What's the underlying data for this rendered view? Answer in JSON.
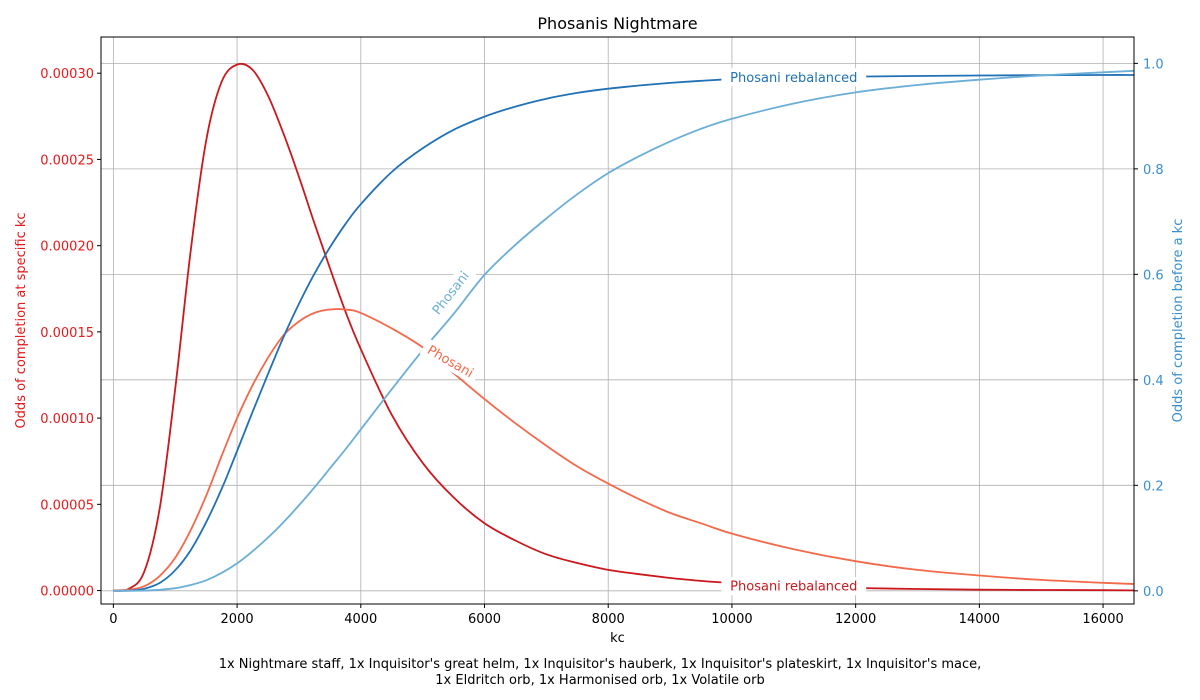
{
  "chart_data": {
    "type": "line",
    "title": "Phosanis Nightmare",
    "xlabel": "kc",
    "ylabel_left": "Odds of completion at specific kc",
    "ylabel_right": "Odds of completion before a kc",
    "xlim": [
      -200,
      16500
    ],
    "ylim_left": [
      -7.8e-06,
      0.000321
    ],
    "ylim_right": [
      -0.025,
      1.05
    ],
    "x_ticks": [
      0,
      2000,
      4000,
      6000,
      8000,
      10000,
      12000,
      14000,
      16000
    ],
    "x_tick_labels": [
      "0",
      "2000",
      "4000",
      "6000",
      "8000",
      "10000",
      "12000",
      "14000",
      "16000"
    ],
    "y_left_ticks": [
      0,
      5e-05,
      0.0001,
      0.00015,
      0.0002,
      0.00025,
      0.0003
    ],
    "y_left_tick_labels": [
      "0.00000",
      "0.00005",
      "0.00010",
      "0.00015",
      "0.00020",
      "0.00025",
      "0.00030"
    ],
    "y_right_ticks": [
      0,
      0.2,
      0.4,
      0.6,
      0.8,
      1.0
    ],
    "y_right_tick_labels": [
      "0.0",
      "0.2",
      "0.4",
      "0.6",
      "0.8",
      "1.0"
    ],
    "grid": true,
    "colors": {
      "left_axis": "#e41a1c",
      "right_axis": "#3a8fd0",
      "pdf_rebalanced": "#cb181d",
      "pdf_phosani": "#f4694a",
      "cdf_rebalanced": "#2171b5",
      "cdf_phosani": "#6baed6",
      "grid": "#b0b0b0"
    },
    "series": [
      {
        "name": "Phosani rebalanced",
        "axis": "left",
        "color_key": "pdf_rebalanced",
        "x": [
          0,
          250,
          500,
          750,
          1000,
          1250,
          1500,
          1750,
          2000,
          2250,
          2500,
          2750,
          3000,
          3250,
          3500,
          3750,
          4000,
          4500,
          5000,
          5500,
          6000,
          6500,
          7000,
          7500,
          8000,
          8500,
          9000,
          9500,
          10000,
          11000,
          12000,
          13000,
          14000,
          15000,
          16000,
          16500
        ],
        "values": [
          0,
          1e-06,
          1.1e-05,
          4.8e-05,
          0.000117,
          0.000197,
          0.000261,
          0.000295,
          0.000305,
          0.000302,
          0.000287,
          0.000265,
          0.00024,
          0.000213,
          0.000187,
          0.000162,
          0.00014,
          0.000102,
          7.4e-05,
          5.4e-05,
          3.9e-05,
          2.9e-05,
          2.1e-05,
          1.6e-05,
          1.2e-05,
          9.5e-06,
          7.3e-06,
          5.6e-06,
          4.3e-06,
          2.5e-06,
          1.5e-06,
          9e-07,
          5e-07,
          3e-07,
          2e-07,
          1e-07
        ]
      },
      {
        "name": "Phosani",
        "axis": "left",
        "color_key": "pdf_phosani",
        "x": [
          0,
          250,
          500,
          750,
          1000,
          1250,
          1500,
          1750,
          2000,
          2250,
          2500,
          2750,
          3000,
          3250,
          3500,
          3750,
          4000,
          4500,
          5000,
          5500,
          6000,
          6500,
          7000,
          7500,
          8000,
          8500,
          9000,
          9500,
          10000,
          11000,
          12000,
          13000,
          14000,
          15000,
          16000,
          16500
        ],
        "values": [
          0,
          5e-07,
          2.5e-06,
          8.5e-06,
          1.9e-05,
          3.5e-05,
          5.5e-05,
          7.8e-05,
          0.0001,
          0.000119,
          0.000135,
          0.000148,
          0.000156,
          0.000161,
          0.000163,
          0.000163,
          0.000161,
          0.000152,
          0.000141,
          0.000126,
          0.000111,
          9.7e-05,
          8.4e-05,
          7.2e-05,
          6.2e-05,
          5.3e-05,
          4.5e-05,
          3.9e-05,
          3.3e-05,
          2.4e-05,
          1.7e-05,
          1.2e-05,
          8.7e-06,
          6.2e-06,
          4.5e-06,
          3.8e-06
        ]
      },
      {
        "name": "Phosani rebalanced",
        "axis": "right",
        "color_key": "cdf_rebalanced",
        "x": [
          0,
          250,
          500,
          750,
          1000,
          1250,
          1500,
          1750,
          2000,
          2250,
          2500,
          2750,
          3000,
          3250,
          3500,
          3750,
          4000,
          4500,
          5000,
          5500,
          6000,
          6500,
          7000,
          7500,
          8000,
          8500,
          9000,
          9500,
          10000,
          11000,
          12000,
          13000,
          14000,
          15000,
          16000,
          16500
        ],
        "values": [
          0,
          0.0004,
          0.004,
          0.015,
          0.039,
          0.077,
          0.13,
          0.193,
          0.265,
          0.339,
          0.411,
          0.481,
          0.544,
          0.601,
          0.651,
          0.695,
          0.733,
          0.794,
          0.839,
          0.874,
          0.899,
          0.918,
          0.933,
          0.944,
          0.952,
          0.958,
          0.963,
          0.967,
          0.97,
          0.973,
          0.975,
          0.976,
          0.977,
          0.9775,
          0.978,
          0.978
        ]
      },
      {
        "name": "Phosani",
        "axis": "right",
        "color_key": "cdf_phosani",
        "x": [
          0,
          250,
          500,
          750,
          1000,
          1250,
          1500,
          1750,
          2000,
          2250,
          2500,
          2750,
          3000,
          3250,
          3500,
          3750,
          4000,
          4500,
          5000,
          5500,
          6000,
          6500,
          7000,
          7500,
          8000,
          8500,
          9000,
          9500,
          10000,
          11000,
          12000,
          13000,
          14000,
          15000,
          16000,
          16500
        ],
        "values": [
          0,
          5e-05,
          0.0005,
          0.002,
          0.005,
          0.011,
          0.02,
          0.034,
          0.052,
          0.075,
          0.101,
          0.13,
          0.162,
          0.196,
          0.232,
          0.268,
          0.306,
          0.382,
          0.456,
          0.525,
          0.599,
          0.656,
          0.706,
          0.752,
          0.792,
          0.824,
          0.852,
          0.876,
          0.895,
          0.924,
          0.945,
          0.959,
          0.969,
          0.977,
          0.983,
          0.986
        ]
      }
    ],
    "annotations": [
      {
        "text": "Phosani rebalanced",
        "series_color_key": "cdf_rebalanced",
        "at_x": 11000,
        "axis": "right",
        "at_y": 0.9735
      },
      {
        "text": "Phosani",
        "series_color_key": "cdf_phosani",
        "at_x": 5450,
        "axis": "right",
        "at_y": 0.565
      },
      {
        "text": "Phosani",
        "series_color_key": "pdf_phosani",
        "at_x": 5450,
        "axis": "left",
        "at_y": 0.000133
      },
      {
        "text": "Phosani rebalanced",
        "series_color_key": "pdf_rebalanced",
        "at_x": 11000,
        "axis": "left",
        "at_y": 2.5e-06
      }
    ],
    "caption_line1": "1x Nightmare staff, 1x Inquisitor's great helm, 1x Inquisitor's hauberk, 1x Inquisitor's plateskirt, 1x Inquisitor's mace,",
    "caption_line2": "1x Eldritch orb, 1x Harmonised orb, 1x Volatile orb"
  }
}
